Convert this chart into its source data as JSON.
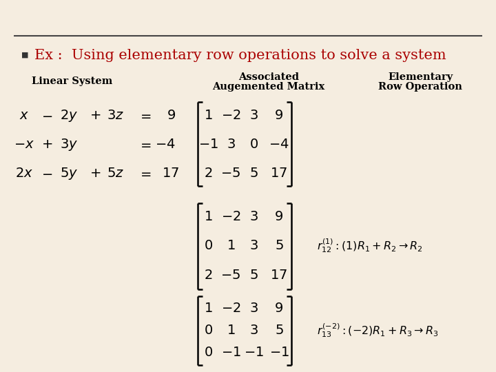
{
  "background_color": "#f5ede0",
  "title_text": "Ex :  Using elementary row operations to solve a system",
  "title_color": "#aa0000",
  "title_fontsize": 15,
  "bullet_color": "#333333",
  "header_linear": "Linear System",
  "header_augmented1": "Associated",
  "header_augmented2": "Augemented Matrix",
  "header_elementary1": "Elementary",
  "header_elementary2": "Row Operation",
  "header_color": "#000000",
  "header_fontsize": 10.5,
  "line_color": "#444444",
  "text_color": "#000000",
  "math_fontsize": 13,
  "m1_data": [
    [
      "1",
      "-2",
      "3",
      "9"
    ],
    [
      "-1",
      "3",
      "0",
      "-4"
    ],
    [
      "2",
      "-5",
      "5",
      "17"
    ]
  ],
  "m2_data": [
    [
      "1",
      "-2",
      "3",
      "9"
    ],
    [
      "0",
      "1",
      "3",
      "5"
    ],
    [
      "2",
      "-5",
      "5",
      "17"
    ]
  ],
  "m3_data": [
    [
      "1",
      "-2",
      "3",
      "9"
    ],
    [
      "0",
      "1",
      "3",
      "5"
    ],
    [
      "0",
      "-1",
      "-1",
      "-1"
    ]
  ]
}
